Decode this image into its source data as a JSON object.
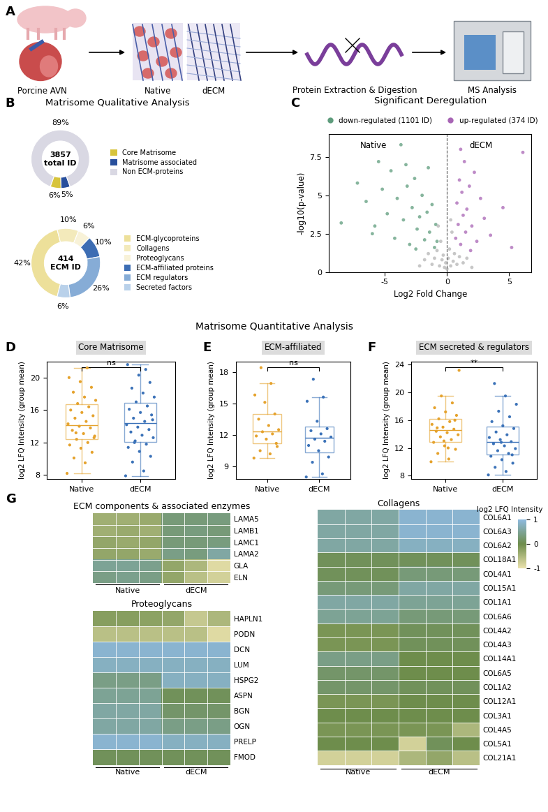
{
  "panel_letters": [
    "A",
    "B",
    "C",
    "D",
    "E",
    "F",
    "G"
  ],
  "workflow": {
    "type": "diagram",
    "steps": [
      "Porcine AVN",
      "Native",
      "dECM",
      "Protein Extraction & Digestion",
      "MS Analysis"
    ]
  },
  "quantitative_title": "Matrisome Quantitative Analysis",
  "chart_data": [
    {
      "type": "donut",
      "title": "Matrisome Qualitative Analysis",
      "center_text": "3857\ntotal ID",
      "categories": [
        "Core Matrisome",
        "Matrisome associated",
        "Non ECM-proteins"
      ],
      "values": [
        6,
        5,
        89
      ],
      "value_labels": [
        "6%",
        "5%",
        "89%"
      ],
      "colors": [
        "#d7c43c",
        "#284f9c",
        "#d9d8e3"
      ]
    },
    {
      "type": "donut",
      "center_text": "414\nECM ID",
      "categories": [
        "ECM-glycoproteins",
        "Collagens",
        "Proteoglycans",
        "ECM-affiliated proteins",
        "ECM regulators",
        "Secreted factors"
      ],
      "values": [
        42,
        10,
        6,
        10,
        26,
        6
      ],
      "value_labels": [
        "42%",
        "10%",
        "6%",
        "10%",
        "26%",
        "6%"
      ],
      "colors": [
        "#ede09a",
        "#f3eabb",
        "#f8f2d8",
        "#3d6db3",
        "#86acd6",
        "#b9d1ea"
      ]
    },
    {
      "type": "scatter",
      "title": "Significant Deregulation",
      "xlabel": "Log2 Fold Change",
      "ylabel": "-log10(p-value)",
      "annotations": [
        "Native",
        "dECM"
      ],
      "legend": "upper center",
      "xlim": [
        -9.5,
        6.8
      ],
      "xticks": [
        -5,
        0,
        5
      ],
      "ylim": [
        0,
        9
      ],
      "yticks": [
        0,
        2.5,
        5,
        7.5
      ],
      "series": [
        {
          "name": "down-regulated (1101 ID)",
          "color": "#5e9c7c",
          "x": [
            -8.5,
            -7.2,
            -6.5,
            -6.0,
            -5.5,
            -5.2,
            -4.8,
            -4.5,
            -4.2,
            -4.0,
            -3.7,
            -3.5,
            -3.2,
            -3.0,
            -2.8,
            -2.6,
            -2.4,
            -2.2,
            -2.0,
            -1.8,
            -1.6,
            -1.4,
            -1.2,
            -1.0,
            -0.9,
            -0.8,
            -3.3,
            -5.8,
            -2.5,
            -1.5
          ],
          "y": [
            3.2,
            5.8,
            4.6,
            2.5,
            7.2,
            5.4,
            3.8,
            6.6,
            2.2,
            4.8,
            8.3,
            3.4,
            5.6,
            1.8,
            4.2,
            6.1,
            2.8,
            3.6,
            5.0,
            2.1,
            3.9,
            2.6,
            4.4,
            1.6,
            3.1,
            2.0,
            7.0,
            3.0,
            1.5,
            6.8
          ]
        },
        {
          "name": "up-regulated (374 ID)",
          "color": "#a865b5",
          "x": [
            0.7,
            0.8,
            0.9,
            1.0,
            1.1,
            1.2,
            1.3,
            1.4,
            1.5,
            1.6,
            1.8,
            2.0,
            2.2,
            2.4,
            2.7,
            3.0,
            3.5,
            4.5,
            5.2,
            6.1,
            1.9,
            1.1
          ],
          "y": [
            2.2,
            4.5,
            3.1,
            6.0,
            1.8,
            5.2,
            3.7,
            7.2,
            2.6,
            4.1,
            5.6,
            3.0,
            6.5,
            2.0,
            4.8,
            3.5,
            2.4,
            4.2,
            1.6,
            7.8,
            1.4,
            8.0
          ]
        },
        {
          "color": "#b5b5b5",
          "x": [
            -1.8,
            -1.5,
            -1.2,
            -1.0,
            -0.8,
            -0.6,
            -0.5,
            -0.4,
            -0.3,
            -0.2,
            -0.1,
            0.0,
            0.1,
            0.2,
            0.3,
            0.4,
            0.5,
            0.6,
            0.8,
            1.0,
            1.3,
            1.6,
            2.0,
            -2.2,
            -0.7,
            0.3
          ],
          "y": [
            0.8,
            1.2,
            0.5,
            0.9,
            1.4,
            0.4,
            2.0,
            0.8,
            1.1,
            0.3,
            0.6,
            0.2,
            0.9,
            1.5,
            0.4,
            2.6,
            0.7,
            1.2,
            0.5,
            1.0,
            0.6,
            0.9,
            0.3,
            0.4,
            3.0,
            3.4
          ]
        }
      ]
    },
    {
      "type": "box",
      "title": "Core Matrisome",
      "annotation": "ns",
      "ylabel": "log2 LFQ Intensity (group mean)",
      "categories": [
        "Native",
        "dECM"
      ],
      "colors": [
        "#e5a22c",
        "#3b72b8"
      ],
      "ylim": [
        7.5,
        22
      ],
      "yticks": [
        8,
        12,
        16,
        20
      ],
      "values": [
        [
          8.2,
          9.5,
          10.1,
          10.8,
          11.3,
          11.7,
          12.0,
          12.4,
          12.8,
          13.1,
          13.5,
          13.8,
          14.0,
          14.3,
          14.6,
          15.0,
          15.3,
          15.7,
          16.0,
          16.4,
          16.8,
          17.2,
          17.6,
          18.2,
          18.8,
          19.5,
          20.0,
          21.2,
          13.2,
          12.6
        ],
        [
          7.9,
          8.5,
          9.6,
          10.3,
          10.9,
          11.4,
          11.8,
          12.2,
          12.6,
          12.9,
          13.3,
          13.6,
          13.9,
          14.2,
          14.6,
          15.0,
          15.4,
          15.7,
          16.1,
          16.5,
          17.0,
          17.6,
          18.1,
          18.7,
          19.4,
          20.3,
          21.6,
          21.0,
          12.0,
          14.8
        ]
      ]
    },
    {
      "type": "box",
      "title": "ECM-affiliated",
      "annotation": "ns",
      "ylabel": "log2 LFQ Intensity (group mean)",
      "categories": [
        "Native",
        "dECM"
      ],
      "colors": [
        "#e5a22c",
        "#3b72b8"
      ],
      "ylim": [
        7.8,
        19
      ],
      "yticks": [
        9,
        12,
        15,
        18
      ],
      "values": [
        [
          9.8,
          10.2,
          10.5,
          11.2,
          11.6,
          11.9,
          12.1,
          12.3,
          12.5,
          12.9,
          13.5,
          14.0,
          15.1,
          15.8,
          16.9,
          18.4,
          10.9
        ],
        [
          8.0,
          8.3,
          9.4,
          9.9,
          10.5,
          11.0,
          11.4,
          11.6,
          11.8,
          12.1,
          12.4,
          12.6,
          13.3,
          15.2,
          15.6,
          17.3
        ]
      ]
    },
    {
      "type": "box",
      "title": "ECM secreted & regulators",
      "annotation": "**",
      "ylabel": "log2 LFQ Intensity (group mean)",
      "categories": [
        "Native",
        "dECM"
      ],
      "colors": [
        "#e5a22c",
        "#3b72b8"
      ],
      "ylim": [
        7.5,
        24.5
      ],
      "yticks": [
        8,
        12,
        16,
        20,
        24
      ],
      "values": [
        [
          10.0,
          10.4,
          11.2,
          11.8,
          12.3,
          12.8,
          13.2,
          13.6,
          13.9,
          14.2,
          14.4,
          14.7,
          15.0,
          15.4,
          15.8,
          16.2,
          16.7,
          17.2,
          17.8,
          18.5,
          19.5,
          23.2,
          12.0,
          14.9,
          16.0,
          13.0
        ],
        [
          8.1,
          8.6,
          9.2,
          9.8,
          10.3,
          10.8,
          11.2,
          11.6,
          11.9,
          12.3,
          12.6,
          12.9,
          13.2,
          13.5,
          13.9,
          14.3,
          14.8,
          15.2,
          15.8,
          16.5,
          17.3,
          18.3,
          19.5,
          21.3,
          11.0,
          12.8
        ]
      ]
    },
    {
      "type": "heatmap",
      "title": "ECM components & associated enzymes",
      "column_groups": [
        "Native",
        "dECM"
      ],
      "colors": [
        "#ebe2ad",
        "#6e8d4c",
        "#8db9de"
      ],
      "rows": [
        "LAMA5",
        "LAMB1",
        "LAMC1",
        "LAMA2",
        "GLA",
        "ELN"
      ],
      "cells": [
        [
          -0.4,
          -0.4,
          -0.35,
          0.3,
          0.3,
          0.35
        ],
        [
          -0.4,
          -0.35,
          -0.4,
          0.3,
          0.35,
          0.3
        ],
        [
          -0.3,
          -0.35,
          -0.3,
          0.3,
          0.3,
          0.35
        ],
        [
          -0.3,
          -0.3,
          -0.35,
          0.4,
          0.35,
          0.6
        ],
        [
          0.5,
          0.5,
          0.45,
          -0.3,
          -0.5,
          -0.9
        ],
        [
          0.4,
          0.45,
          0.4,
          -0.3,
          -0.6,
          -0.8
        ]
      ]
    },
    {
      "type": "heatmap",
      "title": "Proteoglycans",
      "column_groups": [
        "Native",
        "dECM"
      ],
      "colors": [
        "#ebe2ad",
        "#6e8d4c",
        "#8db9de"
      ],
      "rows": [
        "HAPLN1",
        "PODN",
        "DCN",
        "LUM",
        "HSPG2",
        "ASPN",
        "BGN",
        "OGN",
        "PRELP",
        "FMOD"
      ],
      "cells": [
        [
          -0.2,
          -0.2,
          -0.25,
          -0.3,
          -0.7,
          -0.5
        ],
        [
          -0.6,
          -0.6,
          -0.6,
          -0.6,
          -0.6,
          -0.9
        ],
        [
          0.9,
          0.9,
          0.9,
          0.9,
          0.9,
          0.9
        ],
        [
          0.8,
          0.8,
          0.8,
          0.8,
          0.8,
          0.8
        ],
        [
          0.4,
          0.4,
          0.4,
          0.8,
          0.8,
          0.8
        ],
        [
          0.5,
          0.5,
          0.5,
          0.1,
          0.1,
          0.1
        ],
        [
          0.6,
          0.6,
          0.6,
          0.2,
          0.2,
          0.2
        ],
        [
          0.6,
          0.6,
          0.6,
          0.4,
          0.4,
          0.4
        ],
        [
          0.9,
          0.9,
          0.9,
          0.8,
          0.8,
          0.8
        ],
        [
          0.1,
          0.1,
          0.1,
          0.1,
          0.1,
          0.1
        ]
      ]
    },
    {
      "type": "heatmap",
      "title": "Collagens",
      "column_groups": [
        "Native",
        "dECM"
      ],
      "colors": [
        "#ebe2ad",
        "#6e8d4c",
        "#8db9de"
      ],
      "colorbar": {
        "label": "log2 LFQ Intensity",
        "range": [
          -1,
          1
        ],
        "ticks": [
          -1,
          0,
          1
        ]
      },
      "rows": [
        "COL6A1",
        "COL6A3",
        "COL6A2",
        "COL18A1",
        "COL4A1",
        "COL15A1",
        "COL1A1",
        "COL6A6",
        "COL4A2",
        "COL4A3",
        "COL14A1",
        "COL6A5",
        "COL1A2",
        "COL12A1",
        "COL3A1",
        "COL4A5",
        "COL5A1",
        "COL21A1"
      ],
      "cells": [
        [
          0.6,
          0.6,
          0.6,
          0.9,
          0.9,
          0.9
        ],
        [
          0.6,
          0.6,
          0.6,
          0.9,
          0.9,
          0.9
        ],
        [
          0.6,
          0.6,
          0.6,
          0.8,
          0.8,
          0.8
        ],
        [
          0.1,
          0.1,
          0.1,
          0.1,
          0.1,
          0.1
        ],
        [
          0.1,
          0.1,
          0.1,
          0.3,
          0.3,
          0.3
        ],
        [
          0.3,
          0.3,
          0.3,
          0.6,
          0.6,
          0.6
        ],
        [
          0.6,
          0.6,
          0.6,
          0.5,
          0.5,
          0.5
        ],
        [
          0.5,
          0.5,
          0.5,
          0.3,
          0.3,
          0.3
        ],
        [
          -0.1,
          -0.1,
          -0.1,
          0.1,
          0.1,
          0.1
        ],
        [
          -0.1,
          -0.1,
          -0.1,
          0.1,
          0.1,
          0.1
        ],
        [
          0.4,
          0.4,
          0.4,
          0.0,
          0.0,
          0.0
        ],
        [
          0.2,
          0.2,
          0.2,
          0.0,
          0.0,
          0.0
        ],
        [
          0.2,
          0.2,
          0.2,
          0.1,
          0.1,
          0.1
        ],
        [
          -0.1,
          -0.1,
          -0.1,
          0.0,
          0.0,
          0.0
        ],
        [
          0.0,
          0.0,
          0.0,
          0.0,
          0.0,
          0.0
        ],
        [
          -0.1,
          -0.1,
          -0.1,
          -0.1,
          -0.1,
          -0.5
        ],
        [
          0.0,
          0.0,
          0.0,
          -0.8,
          0.1,
          0.0
        ],
        [
          -0.8,
          -0.8,
          -0.8,
          -0.5,
          -0.3,
          -0.6
        ]
      ]
    }
  ]
}
